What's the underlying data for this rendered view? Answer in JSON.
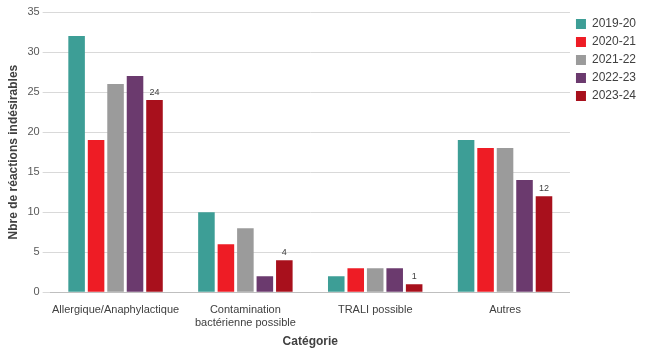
{
  "chart_data": {
    "type": "bar",
    "x_label": "Catégorie",
    "y_label": "Nbre de réactions indésirables",
    "categories": [
      "Allergique/Anaphylactique",
      "Contamination bactérienne possible",
      "TRALI possible",
      "Autres"
    ],
    "series": [
      {
        "name": "2019-20",
        "color": "#3d9e96",
        "values": [
          32,
          10,
          2,
          19
        ]
      },
      {
        "name": "2020-21",
        "color": "#ee1c25",
        "values": [
          19,
          6,
          3,
          18
        ]
      },
      {
        "name": "2021-22",
        "color": "#9b9b9b",
        "values": [
          26,
          8,
          3,
          18
        ]
      },
      {
        "name": "2022-23",
        "color": "#6b3a6e",
        "values": [
          27,
          2,
          3,
          14
        ]
      },
      {
        "name": "2023-24",
        "color": "#a8101c",
        "values": [
          24,
          4,
          1,
          12
        ],
        "data_labels": true
      }
    ],
    "ylim": [
      0,
      35
    ],
    "yticks": [
      0,
      5,
      10,
      15,
      20,
      25,
      30,
      35
    ],
    "grid": true,
    "legend": "top-right"
  }
}
